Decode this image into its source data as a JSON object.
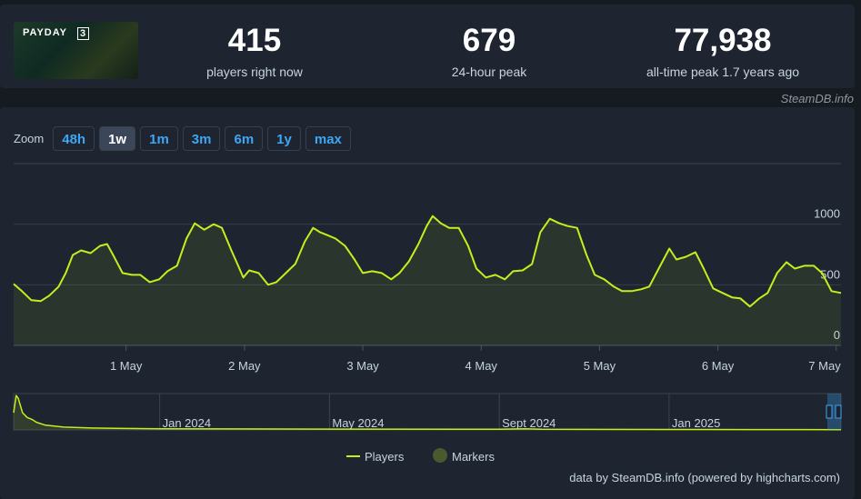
{
  "header": {
    "logo": [
      "PAYDAY",
      "3"
    ],
    "stats": [
      {
        "value": "415",
        "label": "players right now"
      },
      {
        "value": "679",
        "label": "24-hour peak"
      },
      {
        "value": "77,938",
        "label": "all-time peak 1.7 years ago"
      }
    ],
    "watermark": "SteamDB.info"
  },
  "zoom": {
    "label": "Zoom",
    "buttons": [
      "48h",
      "1w",
      "1m",
      "3m",
      "6m",
      "1y",
      "max"
    ]
  },
  "chart_data": [
    {
      "type": "line",
      "x": [
        0.05,
        0.12,
        0.2,
        0.28,
        0.35,
        0.43,
        0.49,
        0.55,
        0.62,
        0.7,
        0.78,
        0.84,
        0.89,
        0.97,
        1.05,
        1.12,
        1.2,
        1.28,
        1.35,
        1.43,
        1.51,
        1.58,
        1.66,
        1.74,
        1.81,
        1.89,
        1.94,
        1.99,
        2.04,
        2.12,
        2.2,
        2.27,
        2.35,
        2.43,
        2.51,
        2.58,
        2.64,
        2.7,
        2.77,
        2.85,
        2.93,
        3.0,
        3.08,
        3.16,
        3.24,
        3.31,
        3.39,
        3.47,
        3.54,
        3.59,
        3.66,
        3.73,
        3.81,
        3.89,
        3.96,
        4.04,
        4.12,
        4.2,
        4.27,
        4.35,
        4.43,
        4.5,
        4.58,
        4.66,
        4.73,
        4.81,
        4.89,
        4.96,
        5.04,
        5.12,
        5.19,
        5.27,
        5.35,
        5.42,
        5.5,
        5.59,
        5.65,
        5.73,
        5.81,
        5.88,
        5.96,
        6.04,
        6.12,
        6.19,
        6.27,
        6.35,
        6.42,
        6.5,
        6.58,
        6.65,
        6.73,
        6.81,
        6.88,
        6.96,
        7.04
      ],
      "series": [
        {
          "name": "Players",
          "color": "#c5ee1c",
          "values": [
            507,
            448,
            373,
            366,
            410,
            485,
            597,
            746,
            784,
            761,
            821,
            836,
            746,
            597,
            582,
            582,
            522,
            545,
            612,
            657,
            881,
            1007,
            955,
            1000,
            970,
            784,
            672,
            560,
            619,
            597,
            500,
            522,
            597,
            672,
            858,
            970,
            933,
            910,
            881,
            821,
            709,
            597,
            612,
            597,
            545,
            597,
            694,
            836,
            985,
            1067,
            1007,
            970,
            970,
            821,
            634,
            560,
            582,
            545,
            612,
            619,
            672,
            933,
            1045,
            1007,
            985,
            970,
            746,
            582,
            545,
            485,
            448,
            448,
            463,
            485,
            634,
            799,
            709,
            731,
            769,
            634,
            470,
            433,
            396,
            388,
            321,
            388,
            433,
            597,
            687,
            634,
            657,
            657,
            597,
            448,
            433
          ]
        }
      ],
      "extra_legend": [
        {
          "name": "Markers",
          "color": "#4b5a2e"
        }
      ],
      "xlim": [
        0.05,
        7.04
      ],
      "xticks": [
        {
          "value": 1,
          "label": "1 May"
        },
        {
          "value": 2,
          "label": "2 May"
        },
        {
          "value": 3,
          "label": "3 May"
        },
        {
          "value": 4,
          "label": "4 May"
        },
        {
          "value": 5,
          "label": "5 May"
        },
        {
          "value": 6,
          "label": "6 May"
        },
        {
          "value": 7,
          "label": "7 May"
        }
      ],
      "ylim": [
        0,
        1500
      ],
      "yticks": [
        0,
        500,
        1000
      ],
      "grid": true,
      "credits": "data by SteamDB.info (powered by highcharts.com)"
    },
    {
      "type": "line",
      "x": [
        -3.44,
        -3.38,
        -3.33,
        -3.23,
        -3.12,
        -3.01,
        -2.9,
        -2.69,
        -2.26,
        -1.61,
        0,
        4,
        8,
        8.6,
        9,
        12,
        14,
        16.05
      ],
      "series": [
        {
          "name": "Players",
          "color": "#c5ee1c",
          "values": [
            37900,
            75800,
            69500,
            37900,
            27400,
            23200,
            16800,
            10500,
            6300,
            4200,
            2500,
            1800,
            1500,
            2500,
            1400,
            1000,
            900,
            600
          ]
        }
      ],
      "xlim": [
        -3.44,
        16.05
      ],
      "xticks": [
        {
          "value": 0,
          "label": "Jan 2024"
        },
        {
          "value": 4,
          "label": "May 2024"
        },
        {
          "value": 8,
          "label": "Sept 2024"
        },
        {
          "value": 12,
          "label": "Jan 2025"
        }
      ],
      "ylim": [
        0,
        80000
      ]
    }
  ]
}
